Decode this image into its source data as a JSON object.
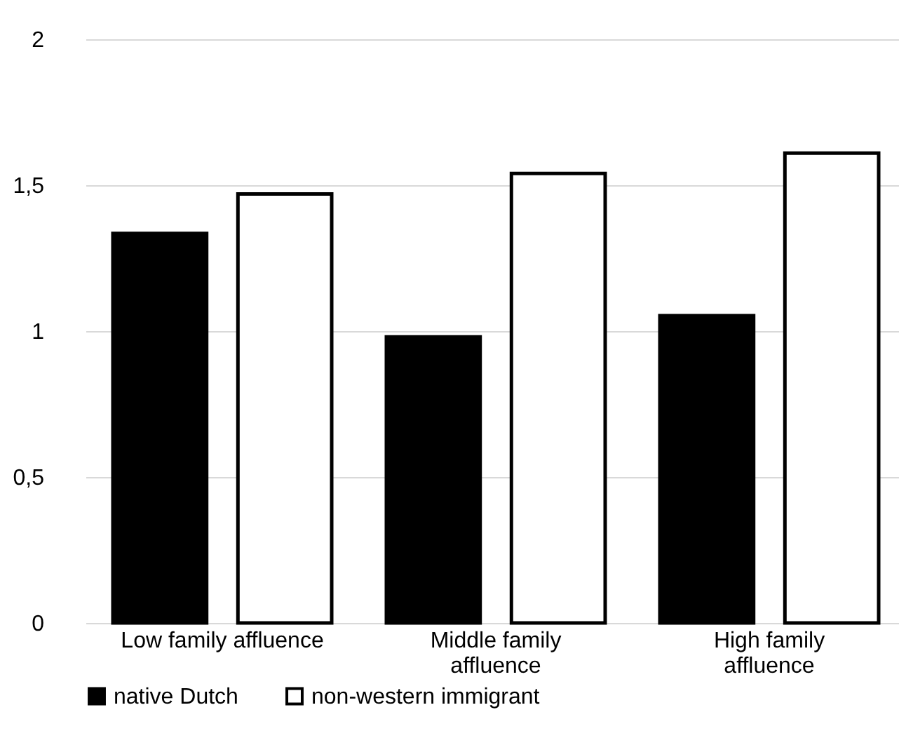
{
  "chart_data": {
    "type": "bar",
    "categories": [
      "Low family affluence",
      "Middle family affluence",
      "High family affluence"
    ],
    "series": [
      {
        "name": "native Dutch",
        "color": "#000000",
        "values": [
          1.335,
          0.98,
          1.053
        ]
      },
      {
        "name": "non-western immigrant",
        "color": "#ffffff",
        "values": [
          1.47,
          1.54,
          1.61
        ]
      }
    ],
    "ylim": [
      0,
      2
    ],
    "yticks": [
      {
        "value": 0,
        "label": "0"
      },
      {
        "value": 0.5,
        "label": "0,5"
      },
      {
        "value": 1,
        "label": "1"
      },
      {
        "value": 1.5,
        "label": "1,5"
      },
      {
        "value": 2,
        "label": "2"
      }
    ],
    "grid": "y",
    "legend": "bottom"
  }
}
